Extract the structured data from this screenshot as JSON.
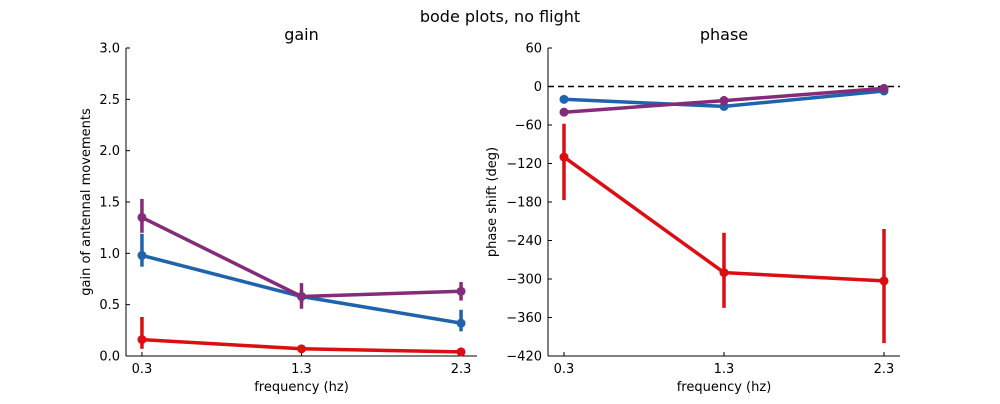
{
  "suptitle": "bode plots, no flight",
  "chart_data": [
    {
      "type": "line",
      "title": "gain",
      "xlabel": "frequency (hz)",
      "ylabel": "gain of antennal movements",
      "x": [
        0.3,
        1.3,
        2.3
      ],
      "x_tick_labels": [
        "0.3",
        "1.3",
        "2.3"
      ],
      "ylim": [
        0,
        3.0
      ],
      "y_ticks": [
        0,
        0.5,
        1.0,
        1.5,
        2.0,
        2.5,
        3.0
      ],
      "y_tick_labels": [
        "0.0",
        "0.5",
        "1.0",
        "1.5",
        "2.0",
        "2.5",
        "3.0"
      ],
      "grid": false,
      "series": [
        {
          "color": "#1f63ac",
          "values": [
            0.98,
            0.58,
            0.32
          ],
          "err_low": [
            0.87,
            0.52,
            0.24
          ],
          "err_high": [
            1.19,
            0.63,
            0.45
          ]
        },
        {
          "color": "#842b7a",
          "values": [
            1.35,
            0.58,
            0.63
          ],
          "err_low": [
            1.2,
            0.46,
            0.54
          ],
          "err_high": [
            1.53,
            0.71,
            0.72
          ]
        },
        {
          "color": "#dc0d13",
          "values": [
            0.16,
            0.07,
            0.04
          ],
          "err_low": [
            0.07,
            0.05,
            0.03
          ],
          "err_high": [
            0.38,
            0.09,
            0.05
          ]
        }
      ]
    },
    {
      "type": "line",
      "title": "phase",
      "xlabel": "frequency (hz)",
      "ylabel": "phase shift (deg)",
      "x": [
        0.3,
        1.3,
        2.3
      ],
      "x_tick_labels": [
        "0.3",
        "1.3",
        "2.3"
      ],
      "ylim": [
        -420,
        60
      ],
      "y_ticks": [
        60,
        0,
        -60,
        -120,
        -180,
        -240,
        -300,
        -360,
        -420
      ],
      "y_tick_labels": [
        "60",
        "0",
        "−60",
        "−120",
        "−180",
        "−240",
        "−300",
        "−360",
        "−420"
      ],
      "reference_line": {
        "y": 0,
        "style": "dashed",
        "color": "#000000"
      },
      "grid": false,
      "series": [
        {
          "color": "#1f63ac",
          "values": [
            -20,
            -31,
            -7
          ],
          "err_low": [
            -24,
            -34,
            -13
          ],
          "err_high": [
            -16,
            -27,
            -3
          ]
        },
        {
          "color": "#842b7a",
          "values": [
            -40,
            -22,
            -3
          ],
          "err_low": [
            -46,
            -30,
            -5
          ],
          "err_high": [
            -35,
            -15,
            -1
          ]
        },
        {
          "color": "#dc0d13",
          "values": [
            -110,
            -290,
            -303
          ],
          "err_low": [
            -177,
            -345,
            -400
          ],
          "err_high": [
            -58,
            -228,
            -222
          ]
        }
      ]
    }
  ]
}
